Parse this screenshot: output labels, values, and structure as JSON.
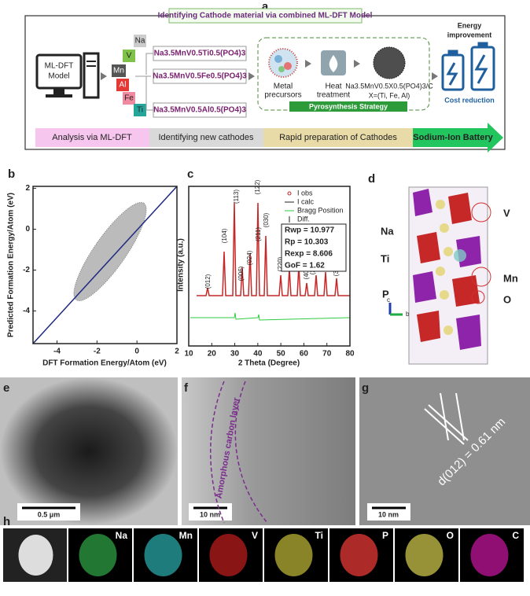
{
  "panel_a": {
    "label": "a",
    "title": "Identifying Cathode material via combined ML-DFT Model",
    "model_lines": [
      "ML-DFT",
      "Model"
    ],
    "elements": [
      "Na",
      "V",
      "Mn",
      "Al",
      "Fe",
      "Ti"
    ],
    "formulas": [
      "Na3.5MnV0.5Ti0.5(PO4)3",
      "Na3.5MnV0.5Fe0.5(PO4)3",
      "Na3.5MnV0.5Al0.5(PO4)3"
    ],
    "precursor_lines": [
      "Metal",
      "precursors"
    ],
    "heat_lines": [
      "Heat",
      "treatment"
    ],
    "product_lines": [
      "Na3.5MnV0.5X0.5(PO4)3/C",
      "X=(Ti, Fe, Al)"
    ],
    "strategy": "Pyrosynthesis Strategy",
    "energy_lines": [
      "Energy",
      "improvement"
    ],
    "cost": "Cost reduction",
    "steps": [
      "Analysis via ML-DFT",
      "Identifying new cathodes",
      "Rapid preparation of Cathodes",
      "Sodium-Ion Battery"
    ]
  },
  "panel_b": {
    "label": "b",
    "xlabel": "DFT Formation Energy/Atom (eV)",
    "ylabel": "Predicted Formation Energy/Atom (eV)",
    "xlim": [
      -5.2,
      2
    ],
    "ylim": [
      -5.6,
      2.1
    ],
    "xticks": [
      -4,
      -2,
      0,
      2
    ],
    "yticks": [
      -4,
      -2,
      0,
      2
    ]
  },
  "panel_c": {
    "label": "c",
    "xlabel": "2 Theta (Degree)",
    "ylabel": "Intensity (a.u.)",
    "xlim": [
      10,
      80
    ],
    "xticks": [
      10,
      20,
      30,
      40,
      50,
      60,
      70,
      80
    ],
    "legend": [
      "I obs",
      "I calc",
      "Bragg Position",
      "Diff."
    ],
    "stats": [
      "Rwp = 10.977",
      "Rp = 10.303",
      "Rexp = 8.606",
      "GoF = 1.62"
    ],
    "peaks": [
      "(012)",
      "(104)",
      "(113)",
      "(006)",
      "(024)",
      "(211)",
      "(122)",
      "(030)",
      "(220)",
      "(131)",
      "(134)",
      "(042)",
      "(404)",
      "(232)",
      "(140)",
      "(143)",
      "(502)",
      "(330)"
    ]
  },
  "panel_d": {
    "label": "d",
    "left_labels": [
      "Na",
      "Ti",
      "P"
    ],
    "right_labels": [
      "V",
      "Mn",
      "O"
    ],
    "axes": [
      "c",
      "b"
    ]
  },
  "panel_e": {
    "label": "e",
    "scale": "0.5 μm"
  },
  "panel_f": {
    "label": "f",
    "scale": "10 nm",
    "annotation": "Amorphous carbon layer"
  },
  "panel_g": {
    "label": "g",
    "scale": "10 nm",
    "annotation": "d(012) = 0.61 nm"
  },
  "panel_h": {
    "label": "h",
    "maps": [
      "Na",
      "Mn",
      "V",
      "Ti",
      "P",
      "O",
      "C"
    ]
  }
}
